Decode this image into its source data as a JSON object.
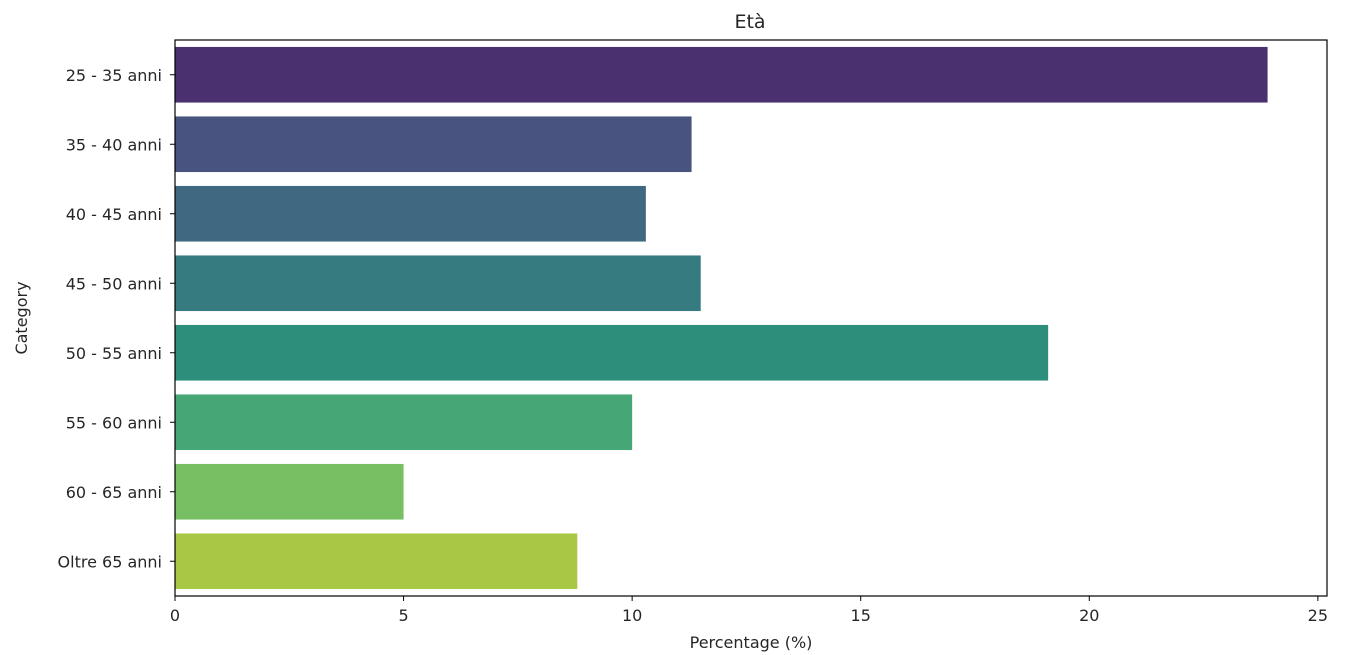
{
  "chart_data": {
    "type": "bar",
    "orientation": "horizontal",
    "title": "Età",
    "xlabel": "Percentage (%)",
    "ylabel": "Category",
    "xlim": [
      0,
      25.2
    ],
    "xticks": [
      0,
      5,
      10,
      15,
      20,
      25
    ],
    "grid": false,
    "legend": "none",
    "categories": [
      "25 - 35 anni",
      "35 - 40 anni",
      "40 - 45 anni",
      "45 - 50 anni",
      "50 - 55 anni",
      "55 - 60 anni",
      "60 - 65 anni",
      "Oltre 65 anni"
    ],
    "values": [
      23.9,
      11.3,
      10.3,
      11.5,
      19.1,
      10.0,
      5.0,
      8.8
    ],
    "colors": [
      "#4a306f",
      "#48537f",
      "#3f6881",
      "#357b80",
      "#2d8e7c",
      "#46a675",
      "#78bf64",
      "#a8c744"
    ]
  }
}
